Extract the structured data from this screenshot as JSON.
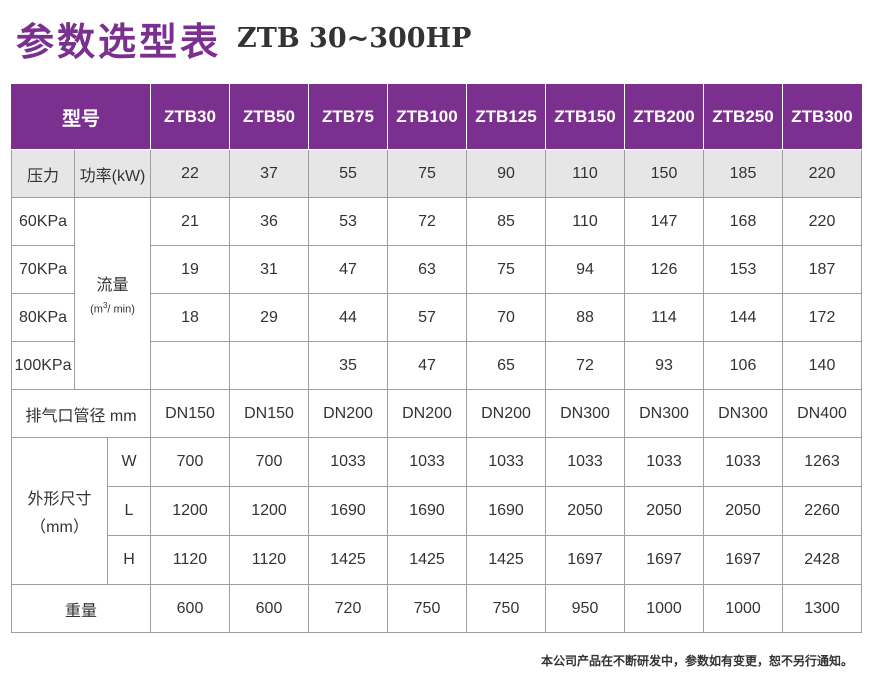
{
  "title": {
    "cn": "参数选型表",
    "en": "ZTB 30~300HP"
  },
  "colors": {
    "header_bg": "#7b2f8e",
    "title_accent": "#7b2f8e",
    "power_row_bg": "#e6e6e6"
  },
  "table": {
    "model_label": "型号",
    "models": [
      "ZTB30",
      "ZTB50",
      "ZTB75",
      "ZTB100",
      "ZTB125",
      "ZTB150",
      "ZTB200",
      "ZTB250",
      "ZTB300"
    ],
    "pressure_label": "压力",
    "power_label": "功率(kW)",
    "power": [
      "22",
      "37",
      "55",
      "75",
      "90",
      "110",
      "150",
      "185",
      "220"
    ],
    "flow_label": "流量",
    "flow_unit_prefix": "(m",
    "flow_unit_sup": "3",
    "flow_unit_suffix": "/ min)",
    "flow": [
      {
        "pressure": "60KPa",
        "values": [
          "21",
          "36",
          "53",
          "72",
          "85",
          "110",
          "147",
          "168",
          "220"
        ]
      },
      {
        "pressure": "70KPa",
        "values": [
          "19",
          "31",
          "47",
          "63",
          "75",
          "94",
          "126",
          "153",
          "187"
        ]
      },
      {
        "pressure": "80KPa",
        "values": [
          "18",
          "29",
          "44",
          "57",
          "70",
          "88",
          "114",
          "144",
          "172"
        ]
      },
      {
        "pressure": "100KPa",
        "values": [
          "",
          "",
          "35",
          "47",
          "65",
          "72",
          "93",
          "106",
          "140"
        ]
      }
    ],
    "pipe_label": "排气口管径 mm",
    "pipe": [
      "DN150",
      "DN150",
      "DN200",
      "DN200",
      "DN200",
      "DN300",
      "DN300",
      "DN300",
      "DN400"
    ],
    "dim_label": "外形尺寸",
    "dim_unit": "（mm）",
    "dims": [
      {
        "axis": "W",
        "values": [
          "700",
          "700",
          "1033",
          "1033",
          "1033",
          "1033",
          "1033",
          "1033",
          "1263"
        ]
      },
      {
        "axis": "L",
        "values": [
          "1200",
          "1200",
          "1690",
          "1690",
          "1690",
          "2050",
          "2050",
          "2050",
          "2260"
        ]
      },
      {
        "axis": "H",
        "values": [
          "1120",
          "1120",
          "1425",
          "1425",
          "1425",
          "1697",
          "1697",
          "1697",
          "2428"
        ]
      }
    ],
    "weight_label": "重量",
    "weight": [
      "600",
      "600",
      "720",
      "750",
      "750",
      "950",
      "1000",
      "1000",
      "1300"
    ]
  },
  "footnote": "本公司产品在不断研发中，参数如有变更，恕不另行通知。"
}
